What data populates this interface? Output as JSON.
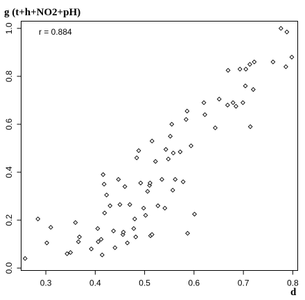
{
  "chart_data": {
    "type": "scatter",
    "title": "g (t+h+NO2+pH)",
    "xlabel": "d",
    "ylabel": "",
    "annotation": "r =  0.884",
    "xlim": [
      0.25,
      0.81
    ],
    "ylim": [
      -0.01,
      1.03
    ],
    "xticks": [
      0.3,
      0.4,
      0.5,
      0.6,
      0.7,
      0.8
    ],
    "xtick_labels": [
      "0.3",
      "0.4",
      "0.5",
      "0.6",
      "0.7",
      "0.8"
    ],
    "yticks": [
      0.0,
      0.2,
      0.4,
      0.6,
      0.8,
      1.0
    ],
    "ytick_labels": [
      "0.0",
      "0.2",
      "0.4",
      "0.6",
      "0.8",
      "1.0"
    ],
    "grid": false,
    "marker": "diamond-open",
    "points": [
      [
        0.258,
        0.04
      ],
      [
        0.284,
        0.205
      ],
      [
        0.302,
        0.105
      ],
      [
        0.31,
        0.17
      ],
      [
        0.343,
        0.06
      ],
      [
        0.35,
        0.065
      ],
      [
        0.36,
        0.19
      ],
      [
        0.366,
        0.11
      ],
      [
        0.368,
        0.13
      ],
      [
        0.392,
        0.08
      ],
      [
        0.405,
        0.165
      ],
      [
        0.406,
        0.11
      ],
      [
        0.412,
        0.12
      ],
      [
        0.414,
        0.055
      ],
      [
        0.416,
        0.39
      ],
      [
        0.418,
        0.35
      ],
      [
        0.419,
        0.23
      ],
      [
        0.423,
        0.305
      ],
      [
        0.43,
        0.26
      ],
      [
        0.437,
        0.155
      ],
      [
        0.44,
        0.085
      ],
      [
        0.447,
        0.37
      ],
      [
        0.45,
        0.265
      ],
      [
        0.456,
        0.14
      ],
      [
        0.457,
        0.15
      ],
      [
        0.46,
        0.34
      ],
      [
        0.465,
        0.105
      ],
      [
        0.47,
        0.265
      ],
      [
        0.478,
        0.165
      ],
      [
        0.48,
        0.205
      ],
      [
        0.482,
        0.13
      ],
      [
        0.484,
        0.46
      ],
      [
        0.488,
        0.49
      ],
      [
        0.492,
        0.355
      ],
      [
        0.498,
        0.25
      ],
      [
        0.502,
        0.22
      ],
      [
        0.506,
        0.32
      ],
      [
        0.51,
        0.345
      ],
      [
        0.511,
        0.355
      ],
      [
        0.512,
        0.135
      ],
      [
        0.515,
        0.14
      ],
      [
        0.515,
        0.53
      ],
      [
        0.522,
        0.445
      ],
      [
        0.527,
        0.26
      ],
      [
        0.535,
        0.37
      ],
      [
        0.541,
        0.25
      ],
      [
        0.543,
        0.495
      ],
      [
        0.548,
        0.455
      ],
      [
        0.552,
        0.55
      ],
      [
        0.555,
        0.6
      ],
      [
        0.557,
        0.325
      ],
      [
        0.558,
        0.48
      ],
      [
        0.562,
        0.37
      ],
      [
        0.572,
        0.485
      ],
      [
        0.578,
        0.36
      ],
      [
        0.584,
        0.62
      ],
      [
        0.586,
        0.655
      ],
      [
        0.587,
        0.145
      ],
      [
        0.594,
        0.51
      ],
      [
        0.601,
        0.225
      ],
      [
        0.62,
        0.69
      ],
      [
        0.622,
        0.64
      ],
      [
        0.643,
        0.585
      ],
      [
        0.651,
        0.705
      ],
      [
        0.668,
        0.68
      ],
      [
        0.669,
        0.825
      ],
      [
        0.679,
        0.69
      ],
      [
        0.685,
        0.675
      ],
      [
        0.693,
        0.83
      ],
      [
        0.699,
        0.69
      ],
      [
        0.704,
        0.76
      ],
      [
        0.705,
        0.83
      ],
      [
        0.713,
        0.85
      ],
      [
        0.714,
        0.59
      ],
      [
        0.72,
        0.745
      ],
      [
        0.722,
        0.86
      ],
      [
        0.76,
        0.86
      ],
      [
        0.776,
        1.0
      ],
      [
        0.786,
        0.84
      ],
      [
        0.788,
        0.985
      ],
      [
        0.798,
        0.88
      ]
    ]
  }
}
